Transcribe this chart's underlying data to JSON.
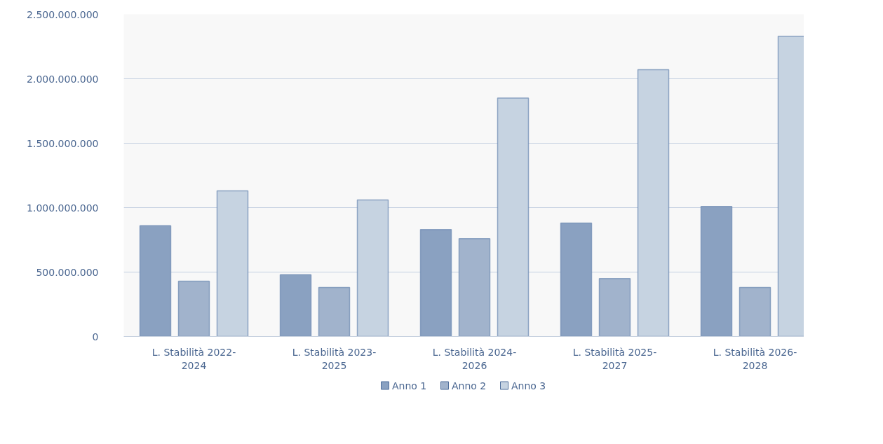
{
  "chart_data": {
    "type": "bar",
    "categories": [
      "L. Stabilità 2022-2024",
      "L. Stabilità 2023-2025",
      "L. Stabilità 2024-2026",
      "L. Stabilità 2025-2027",
      "L. Stabilità 2026-2028"
    ],
    "series": [
      {
        "name": "Anno 1",
        "color": "#8aa1c1",
        "values": [
          860000000,
          480000000,
          830000000,
          880000000,
          1010000000
        ]
      },
      {
        "name": "Anno 2",
        "color": "#a1b3cc",
        "values": [
          430000000,
          380000000,
          760000000,
          450000000,
          380000000
        ]
      },
      {
        "name": "Anno 3",
        "color": "#c6d3e1",
        "values": [
          1130000000,
          1060000000,
          1850000000,
          2070000000,
          2330000000
        ]
      }
    ],
    "ylim": [
      0,
      2500000000
    ],
    "yticks": [
      {
        "value": 0,
        "label": "0"
      },
      {
        "value": 500000000,
        "label": "500.000.000"
      },
      {
        "value": 1000000000,
        "label": "1.000.000.000"
      },
      {
        "value": 1500000000,
        "label": "1.500.000.000"
      },
      {
        "value": 2000000000,
        "label": "2.000.000.000"
      },
      {
        "value": 2500000000,
        "label": "2.500.000.000"
      }
    ],
    "grid": "y",
    "legend": "bottom"
  }
}
